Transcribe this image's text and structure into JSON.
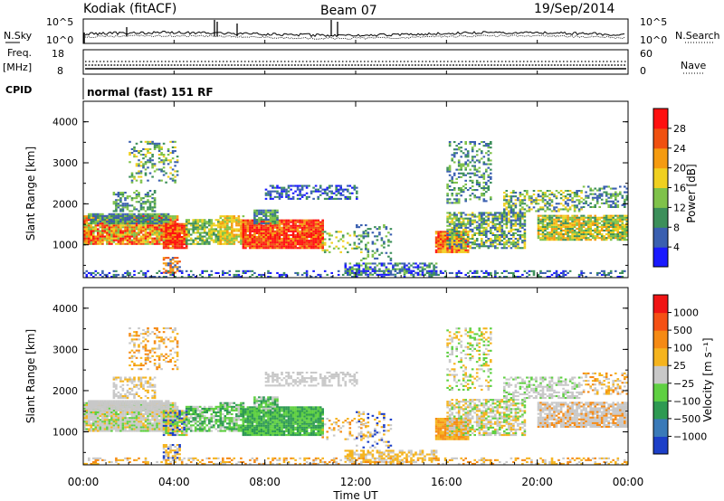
{
  "header": {
    "station": "Kodiak (fitACF)",
    "beam": "Beam 07",
    "date": "19/Sep/2014"
  },
  "nsky_panel": {
    "left_label": "N.Sky",
    "right_label": "N.Search",
    "left_ticks": [
      "10^5",
      "10^0"
    ],
    "right_ticks": [
      "10^5",
      "10^0"
    ]
  },
  "freq_panel": {
    "left_label_1": "Freq.",
    "left_label_2": "[MHz]",
    "right_label": "Nave",
    "left_ticks": [
      "18",
      "8"
    ],
    "right_ticks": [
      "60",
      "0"
    ]
  },
  "cpid": {
    "label": "CPID",
    "text": "normal (fast) 151 RF"
  },
  "chart_data": [
    {
      "type": "heatmap",
      "quantity": "Power",
      "ylabel": "Slant Range [km]",
      "xlabel": "Time UT",
      "y_ticks": [
        1000,
        2000,
        3000,
        4000
      ],
      "ylim": [
        200,
        4500
      ],
      "x_ticks": [
        "00:00",
        "04:00",
        "08:00",
        "12:00",
        "16:00",
        "20:00",
        "00:00"
      ],
      "colorbar_label": "Power [dB]",
      "colorbar_ticks": [
        "4",
        "8",
        "12",
        "16",
        "20",
        "24",
        "28"
      ],
      "colorbar_colors": [
        "#1a1aff",
        "#3a5fb0",
        "#3c8f5a",
        "#7fc24a",
        "#f0d020",
        "#f59b10",
        "#f05010",
        "#ff1010"
      ]
    },
    {
      "type": "heatmap",
      "quantity": "Velocity",
      "ylabel": "Slant Range [km]",
      "xlabel": "Time UT",
      "y_ticks": [
        1000,
        2000,
        3000,
        4000
      ],
      "ylim": [
        200,
        4500
      ],
      "x_ticks": [
        "00:00",
        "04:00",
        "08:00",
        "12:00",
        "16:00",
        "20:00",
        "00:00"
      ],
      "colorbar_label": "Velocity [m s⁻¹]",
      "colorbar_ticks": [
        "1000",
        "500",
        "100",
        "25",
        "−25",
        "−100",
        "−500",
        "−1000"
      ],
      "colorbar_colors": [
        "#1c3fc8",
        "#3a7ab8",
        "#2e9a52",
        "#5fd042",
        "#c8c8c8",
        "#f5b41e",
        "#f58a14",
        "#f55014",
        "#f01414"
      ]
    }
  ]
}
